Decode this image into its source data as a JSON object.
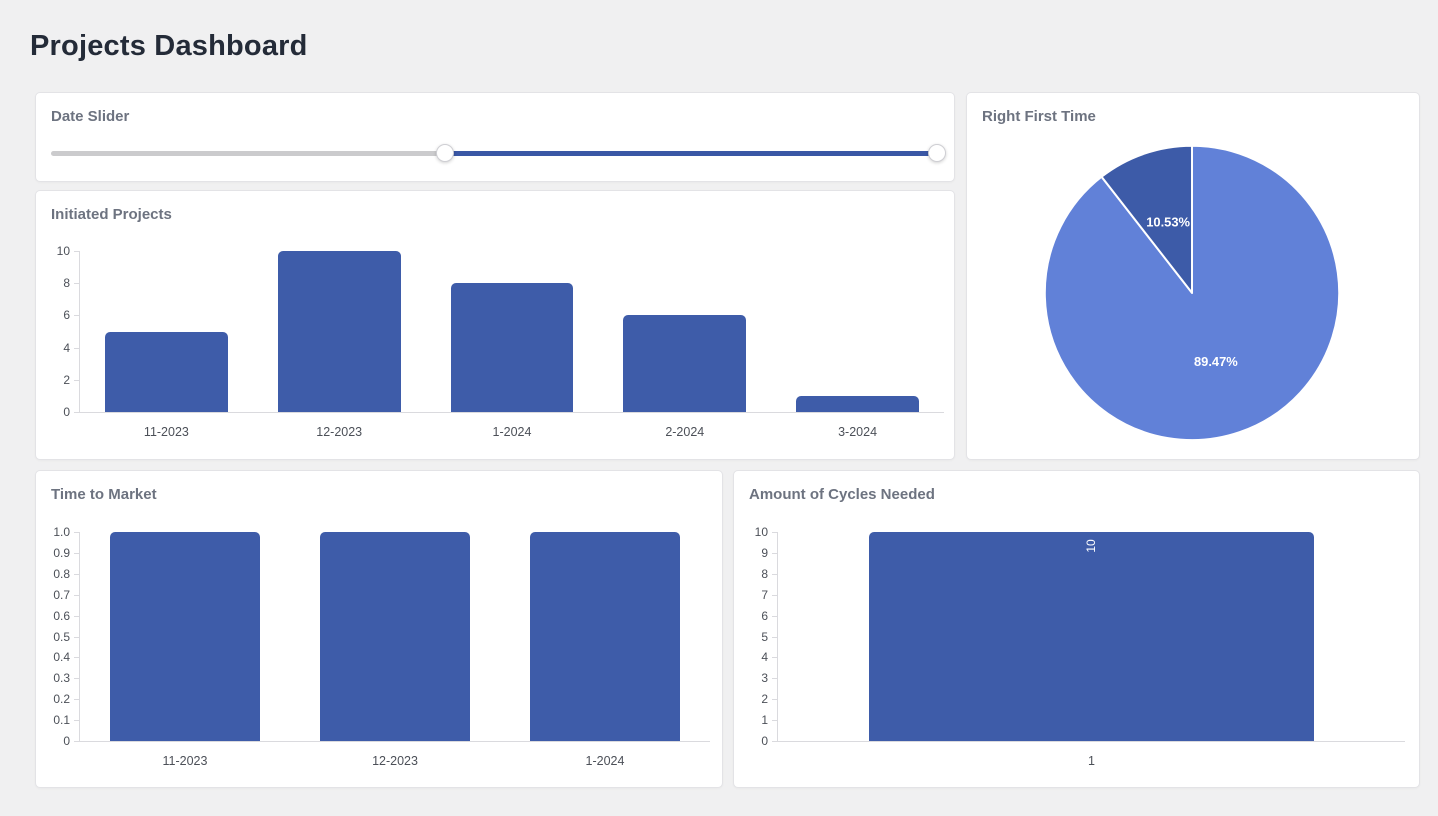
{
  "page": {
    "title": "Projects Dashboard"
  },
  "theme": {
    "background": "#f0f0f1",
    "panel_background": "#ffffff",
    "panel_border": "#e3e3e6",
    "page_title_color": "#242b38",
    "panel_title_color": "#6d7380",
    "axis_label_color": "#4c5058",
    "bar_color": "#3e5ca9",
    "pie_colors": [
      "#6181d8",
      "#3d5ba8"
    ],
    "slider_track_color": "#cbcbcd",
    "slider_range_color": "#3a57a5"
  },
  "date_slider": {
    "title": "Date Slider",
    "start_pct": 44.4,
    "end_pct": 99.8
  },
  "chart_data": [
    {
      "id": "initiated_projects",
      "type": "bar",
      "title": "Initiated Projects",
      "categories": [
        "11-2023",
        "12-2023",
        "1-2024",
        "2-2024",
        "3-2024"
      ],
      "values": [
        5,
        10,
        8,
        6,
        1
      ],
      "xlabel": "",
      "ylabel": "",
      "ylim": [
        0,
        10
      ],
      "yticks": [
        0,
        2,
        4,
        6,
        8,
        10
      ],
      "ytick_labels": [
        "0",
        "2",
        "4",
        "6",
        "8",
        "10"
      ],
      "bar_color": "#3e5ca9",
      "grid": false,
      "legend": false
    },
    {
      "id": "right_first_time",
      "type": "pie",
      "title": "Right First Time",
      "slices": [
        {
          "label": "89.47%",
          "value": 89.47,
          "color": "#6181d8"
        },
        {
          "label": "10.53%",
          "value": 10.53,
          "color": "#3d5ba8"
        }
      ],
      "start_angle_deg": 0,
      "direction": "clockwise",
      "label_color": "#ffffff",
      "legend": false
    },
    {
      "id": "time_to_market",
      "type": "bar",
      "title": "Time to Market",
      "categories": [
        "11-2023",
        "12-2023",
        "1-2024"
      ],
      "values": [
        1.0,
        1.0,
        1.0
      ],
      "xlabel": "",
      "ylabel": "",
      "ylim": [
        0,
        1
      ],
      "yticks": [
        0,
        0.1,
        0.2,
        0.3,
        0.4,
        0.5,
        0.6,
        0.7,
        0.8,
        0.9,
        1
      ],
      "ytick_labels": [
        "0",
        "0.1",
        "0.2",
        "0.3",
        "0.4",
        "0.5",
        "0.6",
        "0.7",
        "0.8",
        "0.9",
        "1.0"
      ],
      "bar_color": "#3e5ca9",
      "grid": false,
      "legend": false
    },
    {
      "id": "cycles_needed",
      "type": "bar",
      "title": "Amount of Cycles Needed",
      "categories": [
        "1"
      ],
      "values": [
        10
      ],
      "bar_labels": [
        "10"
      ],
      "bar_label_color": "#ffffff",
      "xlabel": "",
      "ylabel": "",
      "ylim": [
        0,
        10
      ],
      "yticks": [
        0,
        1,
        2,
        3,
        4,
        5,
        6,
        7,
        8,
        9,
        10
      ],
      "ytick_labels": [
        "0",
        "1",
        "2",
        "3",
        "4",
        "5",
        "6",
        "7",
        "8",
        "9",
        "10"
      ],
      "bar_color": "#3e5ca9",
      "grid": false,
      "legend": false
    }
  ]
}
